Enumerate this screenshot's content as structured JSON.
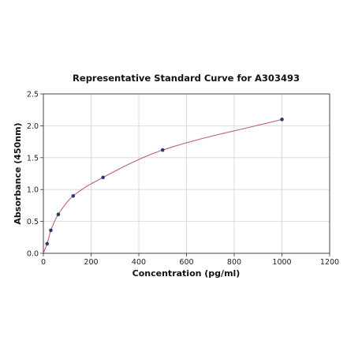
{
  "chart_data": {
    "type": "scatter",
    "title": "Representative Standard Curve for A303493",
    "xlabel": "Concentration (pg/ml)",
    "ylabel": "Absorbance (450nm)",
    "xlim": [
      0,
      1200
    ],
    "ylim": [
      0,
      2.5
    ],
    "x_ticks": [
      "0",
      "200",
      "400",
      "600",
      "800",
      "1000",
      "1200"
    ],
    "y_ticks": [
      "0.0",
      "0.5",
      "1.0",
      "1.5",
      "2.0",
      "2.5"
    ],
    "grid": true,
    "legend": "none",
    "series": [
      {
        "x": [
          15.6,
          31.25,
          62.5,
          125,
          250,
          500,
          1000
        ],
        "y": [
          0.15,
          0.36,
          0.61,
          0.9,
          1.19,
          1.62,
          2.1
        ]
      }
    ],
    "fit_curve": true,
    "colors": {
      "points": "#2b3a6b",
      "curve": "#c0607a",
      "grid": "#d4d4d4"
    }
  }
}
